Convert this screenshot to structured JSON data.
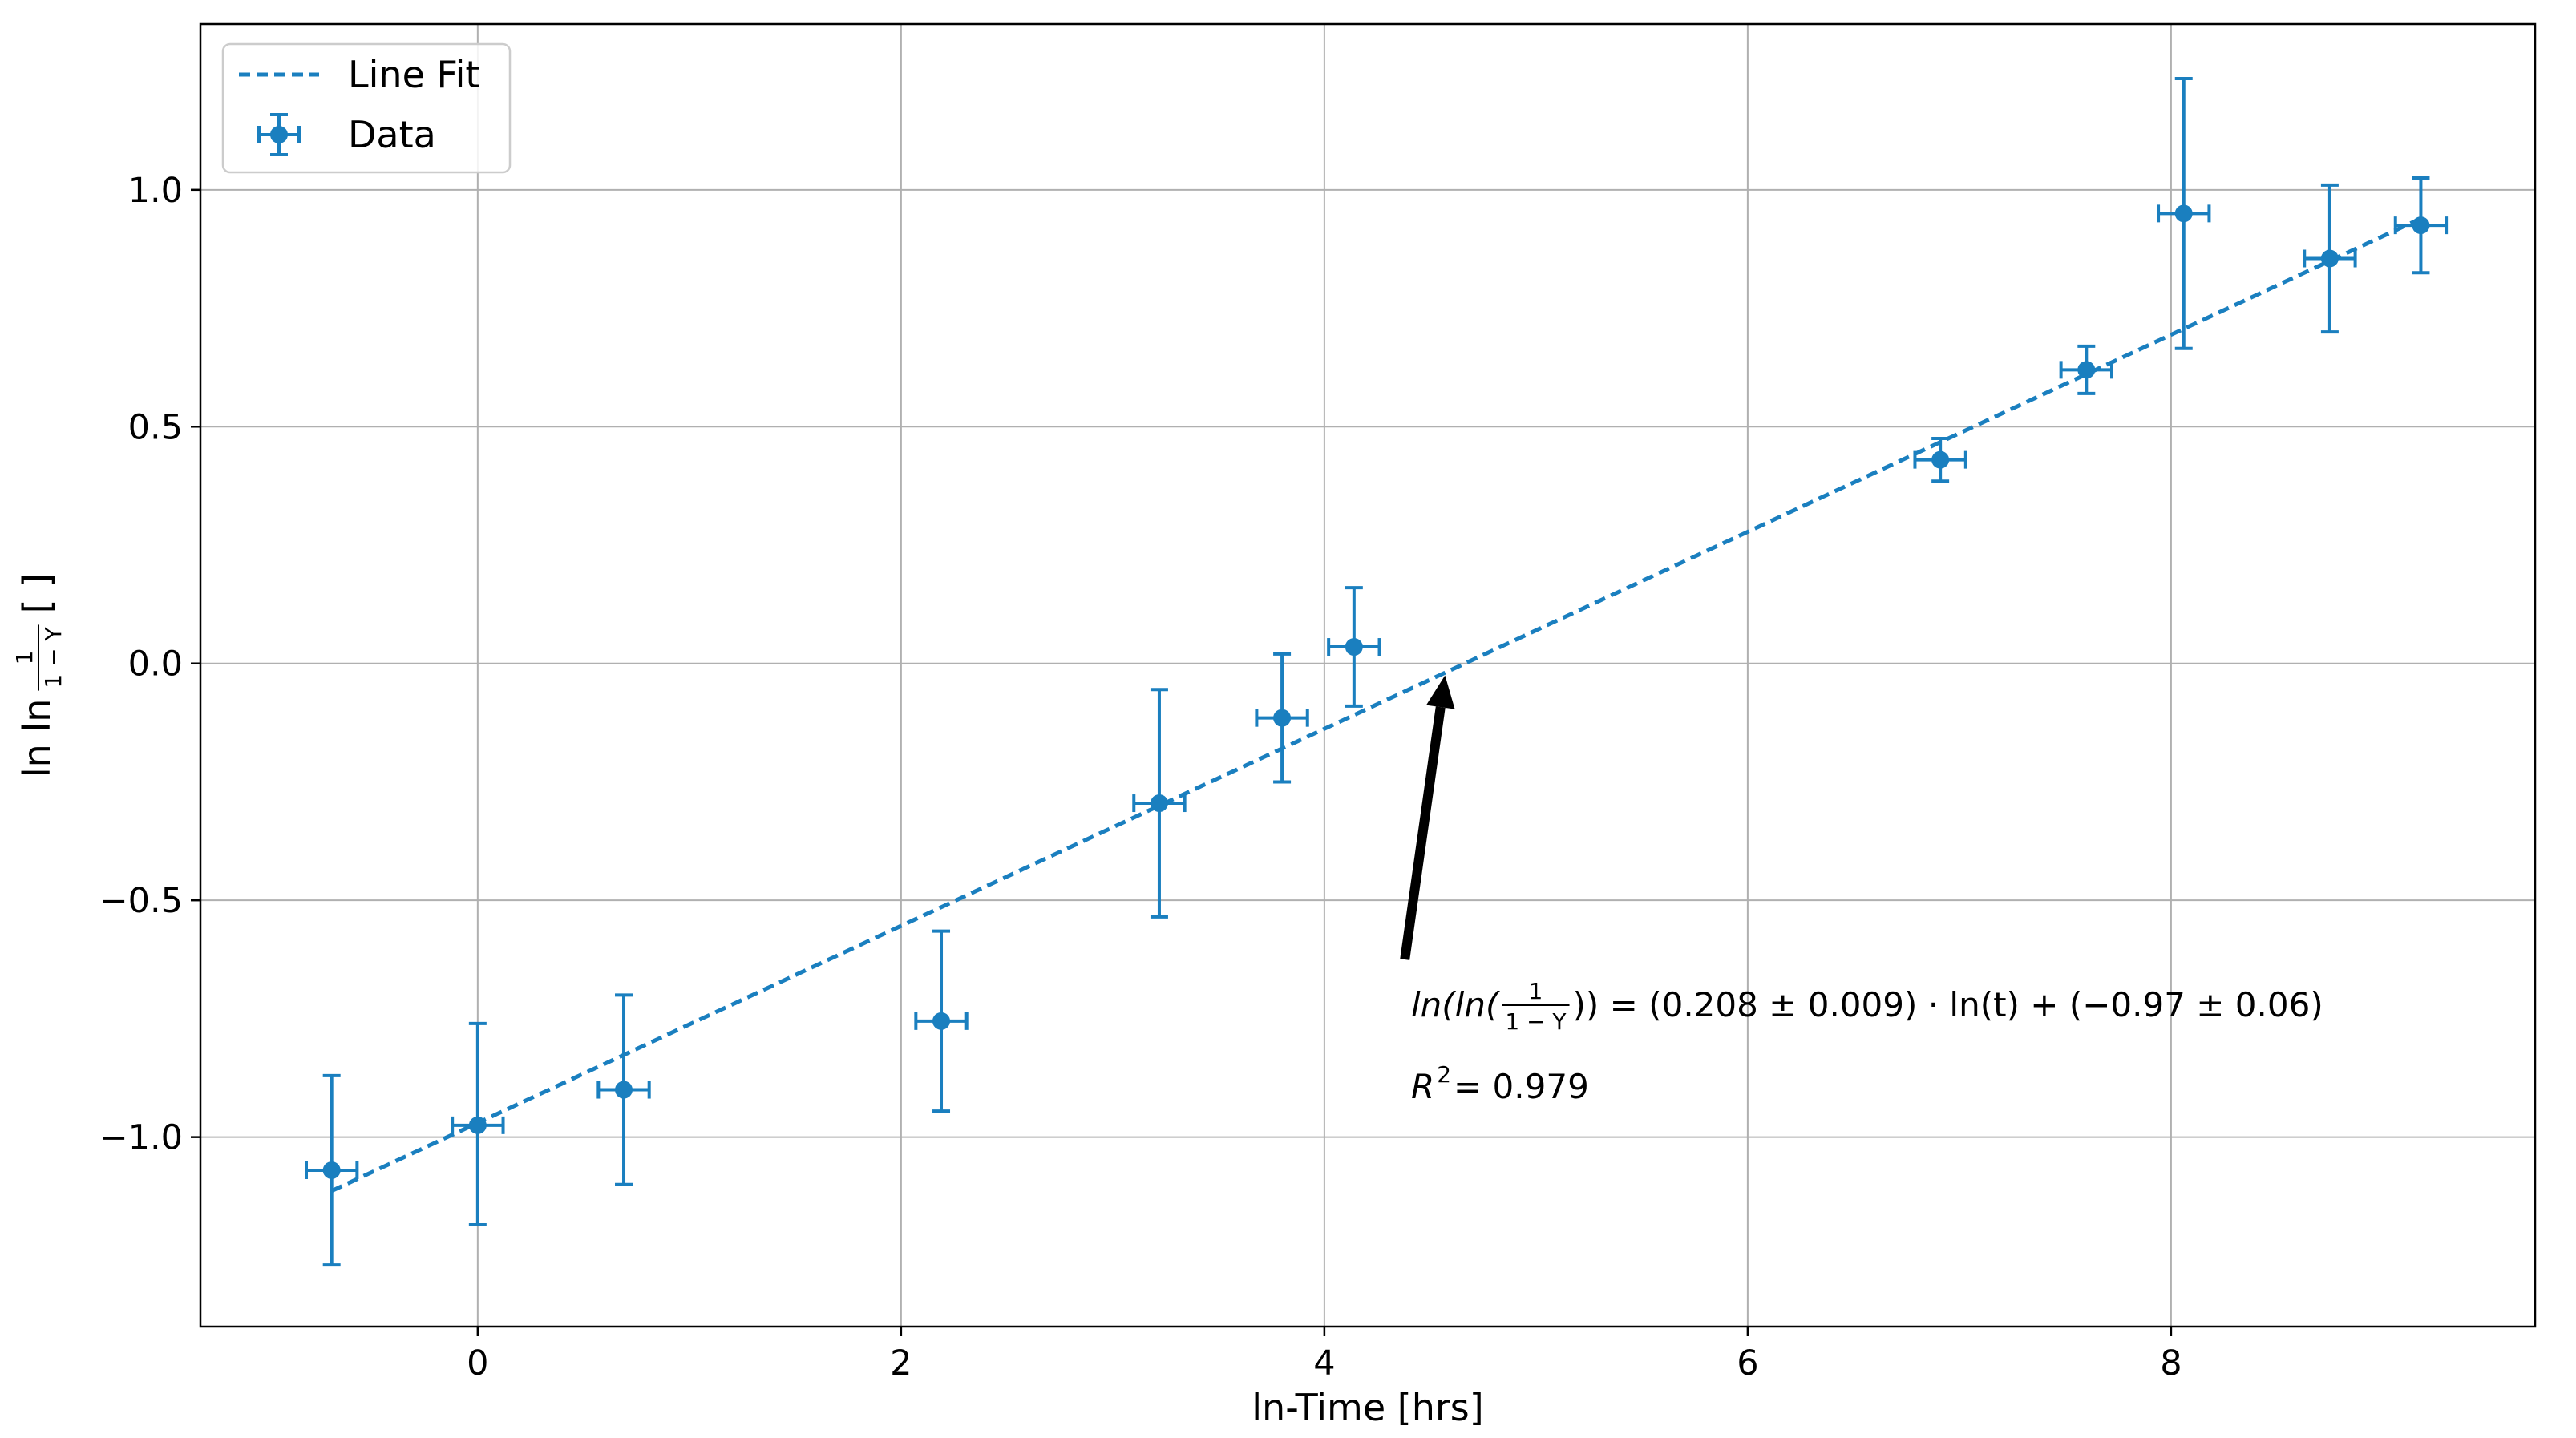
{
  "chart_data": {
    "type": "scatter",
    "xlabel": "ln-Time [hrs]",
    "ylabel_parts": {
      "prefix": "ln ln",
      "frac_num": "1",
      "frac_den": "1 − Y",
      "unit": "[ ]"
    },
    "xlim": [
      -1.31,
      9.72
    ],
    "ylim": [
      -1.4,
      1.35
    ],
    "x_ticks": [
      0,
      2,
      4,
      6,
      8
    ],
    "y_ticks": [
      -1.0,
      -0.5,
      0.0,
      0.5,
      1.0
    ],
    "y_tick_labels": [
      "−1.0",
      "−0.5",
      "0.0",
      "0.5",
      "1.0"
    ],
    "grid": true,
    "legend_position": "top-left",
    "legend": [
      {
        "label": "Line Fit",
        "style": "dashed-line"
      },
      {
        "label": "Data",
        "style": "errorbar-marker"
      }
    ],
    "color": "#1a7fbf",
    "series": [
      {
        "name": "Data",
        "type": "errorbar",
        "points": [
          {
            "x": -0.69,
            "y": -1.07,
            "xerr": 0.12,
            "yerr_low": 0.2,
            "yerr_high": 0.2
          },
          {
            "x": 0.0,
            "y": -0.975,
            "xerr": 0.12,
            "yerr_low": 0.21,
            "yerr_high": 0.215
          },
          {
            "x": 0.69,
            "y": -0.9,
            "xerr": 0.12,
            "yerr_low": 0.2,
            "yerr_high": 0.2
          },
          {
            "x": 2.19,
            "y": -0.755,
            "xerr": 0.12,
            "yerr_low": 0.19,
            "yerr_high": 0.19
          },
          {
            "x": 3.22,
            "y": -0.295,
            "xerr": 0.12,
            "yerr_low": 0.24,
            "yerr_high": 0.24
          },
          {
            "x": 3.8,
            "y": -0.115,
            "xerr": 0.12,
            "yerr_low": 0.135,
            "yerr_high": 0.135
          },
          {
            "x": 4.14,
            "y": 0.035,
            "xerr": 0.12,
            "yerr_low": 0.125,
            "yerr_high": 0.125
          },
          {
            "x": 6.91,
            "y": 0.43,
            "xerr": 0.12,
            "yerr_low": 0.045,
            "yerr_high": 0.045
          },
          {
            "x": 7.6,
            "y": 0.62,
            "xerr": 0.12,
            "yerr_low": 0.05,
            "yerr_high": 0.05
          },
          {
            "x": 8.06,
            "y": 0.95,
            "xerr": 0.12,
            "yerr_low": 0.285,
            "yerr_high": 0.285
          },
          {
            "x": 8.75,
            "y": 0.855,
            "xerr": 0.12,
            "yerr_low": 0.155,
            "yerr_high": 0.155
          },
          {
            "x": 9.18,
            "y": 0.925,
            "xerr": 0.12,
            "yerr_low": 0.1,
            "yerr_high": 0.1
          }
        ]
      },
      {
        "name": "Line Fit",
        "type": "line",
        "slope": 0.208,
        "intercept": -0.97,
        "x_range": [
          -0.69,
          9.18
        ]
      }
    ],
    "annotation": {
      "equation_prefix": "ln(ln(",
      "frac_num": "1",
      "frac_den": "1 − Y",
      "equation_suffix": ")) = (0.208 ± 0.009) · ln(t) + (−0.97 ± 0.06)",
      "r2_prefix": "R",
      "r2_sup": "2",
      "r2_suffix": " = 0.979",
      "arrow_from": {
        "x": 4.38,
        "y": -0.625
      },
      "arrow_to": {
        "x": 4.57,
        "y": -0.025
      }
    }
  }
}
